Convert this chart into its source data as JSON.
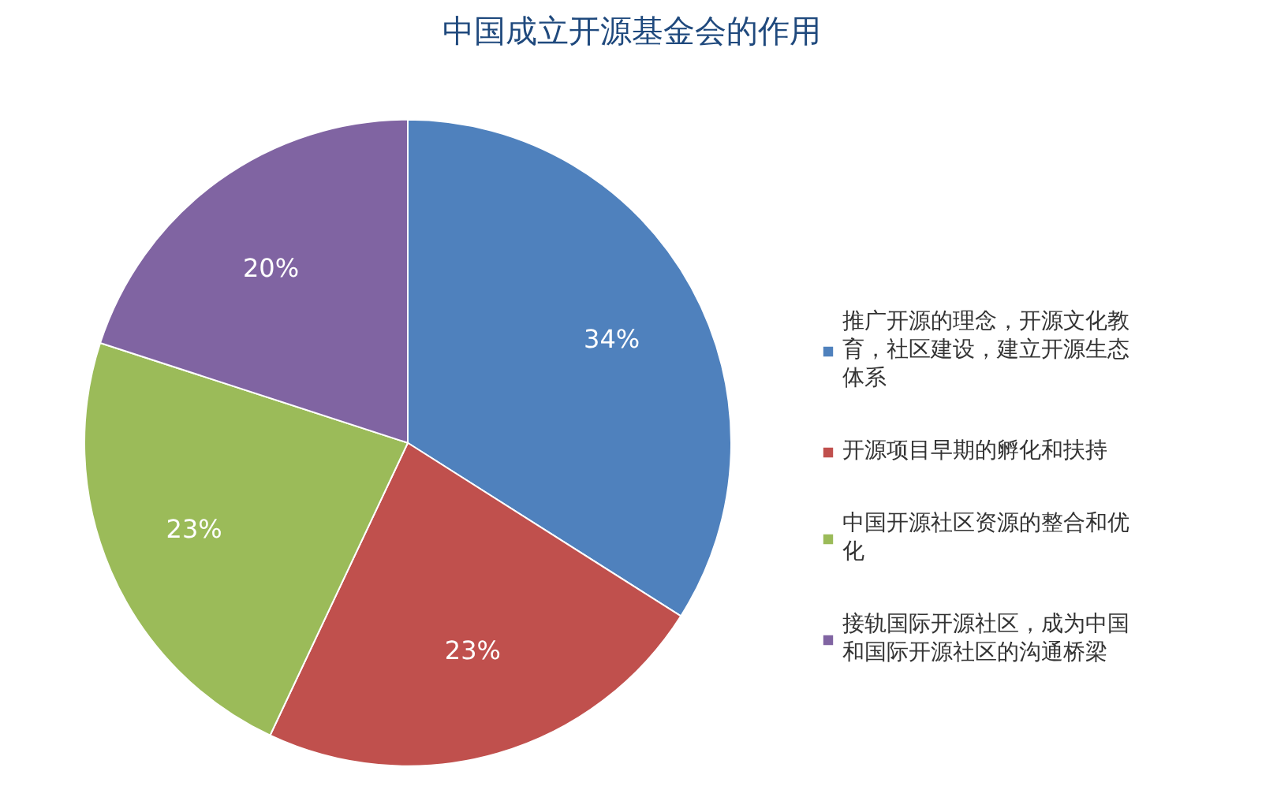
{
  "chart_data": {
    "type": "pie",
    "title": "中国成立开源基金会的作用",
    "categories": [
      "推广开源的理念，开源文化教育，社区建设，建立开源生态体系",
      "开源项目早期的孵化和扶持",
      "中国开源社区资源的整合和优化",
      "接轨国际开源社区，成为中国和国际开源社区的沟通桥梁"
    ],
    "values": [
      34,
      23,
      23,
      20
    ],
    "colors": [
      "#4f81bd",
      "#c0504d",
      "#9bbb59",
      "#8064a2"
    ],
    "value_labels": [
      "34%",
      "23%",
      "23%",
      "20%"
    ],
    "legend": "right"
  }
}
